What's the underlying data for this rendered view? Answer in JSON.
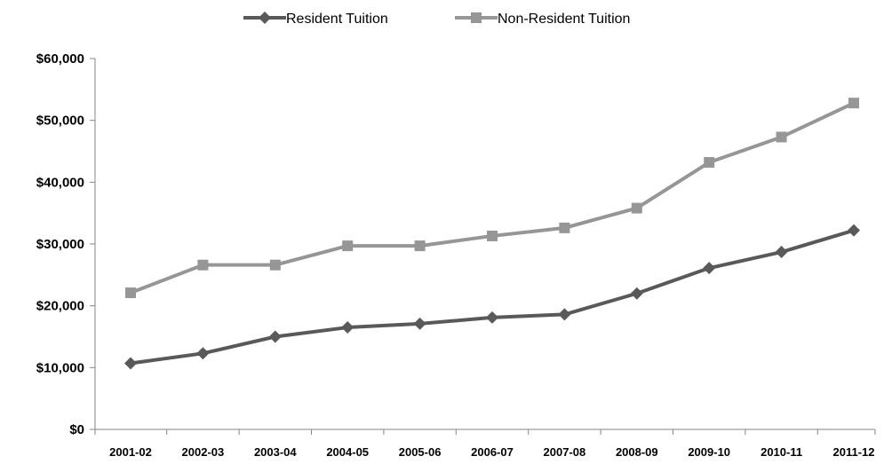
{
  "chart_data": {
    "type": "line",
    "categories": [
      "2001-02",
      "2002-03",
      "2003-04",
      "2004-05",
      "2005-06",
      "2006-07",
      "2007-08",
      "2008-09",
      "2009-10",
      "2010-11",
      "2011-12"
    ],
    "series": [
      {
        "name": "Resident Tuition",
        "color": "#595959",
        "marker": "diamond",
        "values": [
          10700,
          12300,
          15000,
          16500,
          17100,
          18100,
          18600,
          22000,
          26100,
          28700,
          32200
        ]
      },
      {
        "name": "Non-Resident Tuition",
        "color": "#969696",
        "marker": "square",
        "values": [
          22100,
          26600,
          26600,
          29700,
          29700,
          31300,
          32600,
          35800,
          43200,
          47300,
          52800
        ]
      }
    ],
    "ylim": [
      0,
      60000
    ],
    "yticks": [
      0,
      10000,
      20000,
      30000,
      40000,
      50000,
      60000
    ],
    "ytick_labels": [
      "$0",
      "$10,000",
      "$20,000",
      "$30,000",
      "$40,000",
      "$50,000",
      "$60,000"
    ],
    "legend_position": "top",
    "grid": false
  }
}
